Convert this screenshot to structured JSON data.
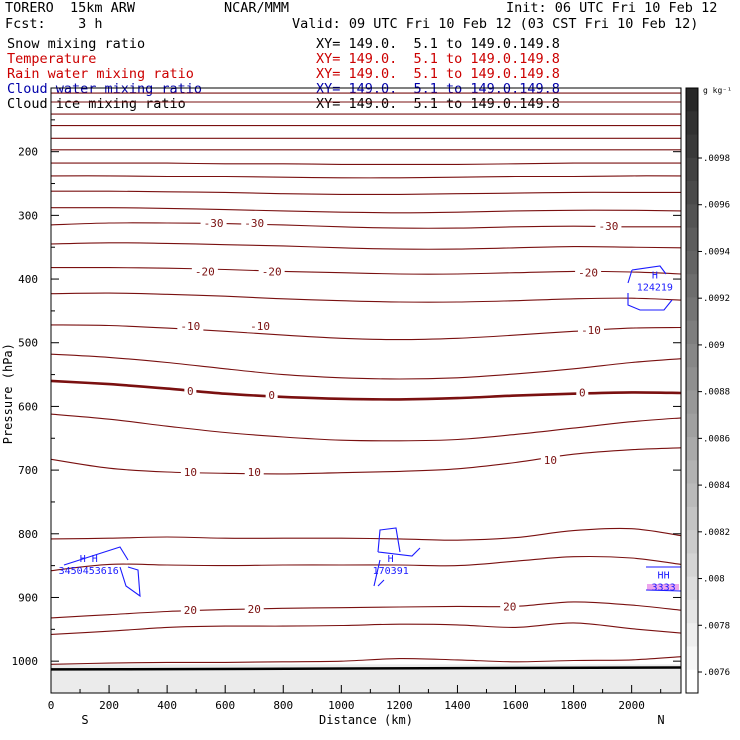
{
  "header": {
    "model": "TORERO  15km ARW",
    "ncar": "NCAR/MMM",
    "init": "Init: 06 UTC Fri 10 Feb 12",
    "fcst": "Fcst:    3 h",
    "valid": "Valid: 09 UTC Fri 10 Feb 12 (03 CST Fri 10 Feb 12)",
    "fields": [
      {
        "label": "Snow mixing ratio",
        "xy": "XY= 149.0.  5.1 to 149.0.149.8",
        "color": "#000000"
      },
      {
        "label": "Temperature",
        "xy": "XY= 149.0.  5.1 to 149.0.149.8",
        "color": "#cc0000"
      },
      {
        "label": "Rain water mixing ratio",
        "xy": "XY= 149.0.  5.1 to 149.0.149.8",
        "color": "#cc0000"
      },
      {
        "label": "Cloud water mixing ratio",
        "xy": "XY= 149.0.  5.1 to 149.0.149.8",
        "color": "#0000aa"
      },
      {
        "label": "Cloud ice mixing ratio",
        "xy": "XY= 149.0.  5.1 to 149.0.149.8",
        "color": "#000000"
      }
    ]
  },
  "chart_data": {
    "type": "contour",
    "xlabel": "Distance (km)",
    "ylabel": "Pressure (hPa)",
    "xlim": [
      0,
      2170
    ],
    "ylim": [
      1050,
      100
    ],
    "x_ticks": [
      0,
      200,
      400,
      600,
      800,
      1000,
      1200,
      1400,
      1600,
      1800,
      2000
    ],
    "y_ticks": [
      200,
      300,
      400,
      500,
      600,
      700,
      800,
      900,
      1000
    ],
    "endpoints": {
      "left": "S",
      "right": "N"
    },
    "isotherm_color": "#7a1010",
    "isotherms_pressure_at": {
      "x": [
        0,
        200,
        400,
        600,
        800,
        1000,
        1200,
        1400,
        1600,
        1800,
        2000,
        2170
      ],
      "levels": [
        [
          108,
          108,
          108,
          108,
          108,
          108,
          108,
          108,
          108,
          108,
          108,
          108
        ],
        [
          122,
          122,
          122,
          122,
          122,
          122,
          122,
          122,
          122,
          122,
          122,
          122
        ],
        [
          141,
          141,
          141,
          141,
          141,
          141,
          141,
          141,
          141,
          141,
          141,
          141
        ],
        [
          159,
          159,
          159,
          159,
          159,
          159,
          159,
          159,
          159,
          159,
          159,
          159
        ],
        [
          179,
          179,
          179,
          179,
          179,
          179,
          179,
          179,
          179,
          179,
          179,
          179
        ],
        [
          197,
          197,
          197,
          197,
          197,
          197,
          197,
          197,
          197,
          197,
          197,
          197
        ],
        [
          218,
          218,
          218,
          219,
          219,
          220,
          220,
          220,
          219,
          218,
          218,
          218
        ],
        [
          238,
          238,
          239,
          239,
          240,
          241,
          241,
          240,
          239,
          239,
          238,
          238
        ],
        [
          262,
          262,
          263,
          264,
          266,
          267,
          267,
          266,
          265,
          264,
          264,
          264
        ],
        [
          288,
          288,
          289,
          291,
          293,
          295,
          296,
          295,
          293,
          292,
          292,
          293
        ],
        [
          315,
          312,
          312,
          313,
          315,
          318,
          320,
          320,
          318,
          317,
          318,
          318
        ],
        [
          345,
          343,
          344,
          346,
          348,
          351,
          353,
          353,
          351,
          349,
          350,
          351
        ],
        [
          382,
          382,
          383,
          385,
          388,
          390,
          392,
          392,
          390,
          388,
          389,
          392
        ],
        [
          423,
          422,
          424,
          427,
          431,
          434,
          436,
          436,
          434,
          431,
          430,
          433
        ],
        [
          472,
          473,
          477,
          482,
          488,
          493,
          495,
          493,
          488,
          482,
          477,
          476
        ],
        [
          518,
          523,
          531,
          541,
          550,
          555,
          557,
          555,
          549,
          541,
          531,
          525
        ],
        [
          560,
          565,
          572,
          580,
          585,
          588,
          589,
          587,
          583,
          580,
          578,
          579
        ],
        [
          612,
          620,
          631,
          641,
          648,
          653,
          654,
          652,
          644,
          634,
          624,
          618
        ],
        [
          683,
          697,
          703,
          705,
          706,
          704,
          702,
          698,
          688,
          675,
          668,
          665
        ],
        [
          808,
          807,
          805,
          807,
          807,
          807,
          808,
          810,
          806,
          795,
          792,
          803
        ],
        [
          858,
          848,
          849,
          850,
          849,
          849,
          849,
          850,
          843,
          836,
          838,
          848
        ],
        [
          932,
          927,
          922,
          919,
          917,
          916,
          915,
          914,
          914,
          907,
          912,
          920
        ],
        [
          958,
          953,
          947,
          945,
          945,
          944,
          942,
          943,
          947,
          940,
          949,
          956
        ],
        [
          1005,
          1003,
          1002,
          1002,
          1001,
          1000,
          996,
          998,
          1001,
          999,
          998,
          993
        ]
      ],
      "freezing_level_index": 16
    },
    "isotherm_labels": [
      {
        "text": "-30",
        "x": 560,
        "p": 312
      },
      {
        "text": "-30",
        "x": 700,
        "p": 312
      },
      {
        "text": "-30",
        "x": 1920,
        "p": 317
      },
      {
        "text": "-20",
        "x": 530,
        "p": 388
      },
      {
        "text": "-20",
        "x": 760,
        "p": 388
      },
      {
        "text": "-20",
        "x": 1850,
        "p": 390
      },
      {
        "text": "-10",
        "x": 480,
        "p": 474
      },
      {
        "text": "-10",
        "x": 720,
        "p": 474
      },
      {
        "text": "-10",
        "x": 1860,
        "p": 480
      },
      {
        "text": "0",
        "x": 480,
        "p": 576
      },
      {
        "text": "0",
        "x": 760,
        "p": 582
      },
      {
        "text": "0",
        "x": 1830,
        "p": 578
      },
      {
        "text": "10",
        "x": 480,
        "p": 703
      },
      {
        "text": "10",
        "x": 700,
        "p": 703
      },
      {
        "text": "10",
        "x": 1720,
        "p": 684
      },
      {
        "text": "20",
        "x": 480,
        "p": 920
      },
      {
        "text": "20",
        "x": 700,
        "p": 918
      },
      {
        "text": "20",
        "x": 1580,
        "p": 914
      }
    ],
    "cloud_water_max_labels": [
      {
        "marker": "H",
        "value": "124219",
        "x": 2080,
        "p": 410
      },
      {
        "marker": "H",
        "value": "170391",
        "x": 1170,
        "p": 855
      },
      {
        "marker": "H H",
        "value": "3450453616",
        "x": 130,
        "p": 855
      },
      {
        "marker": "HH",
        "value": "3333",
        "x": 2110,
        "p": 881
      }
    ],
    "colorbar": {
      "unit": "g kg⁻¹",
      "ticks": [
        ".0098",
        ".0096",
        ".0094",
        ".0092",
        ".009",
        ".0088",
        ".0086",
        ".0084",
        ".0082",
        ".008",
        ".0078",
        ".0076"
      ]
    }
  }
}
